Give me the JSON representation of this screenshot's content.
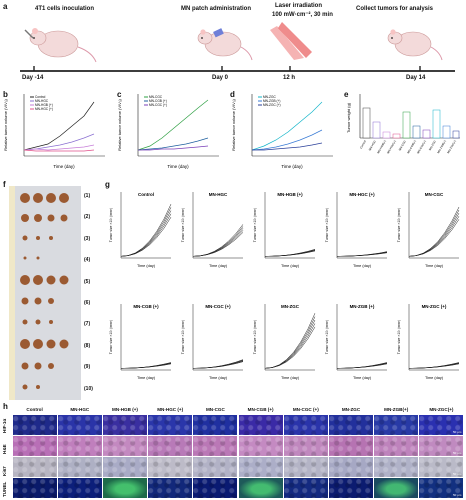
{
  "panels": {
    "a": "a",
    "b": "b",
    "c": "c",
    "d": "d",
    "e": "e",
    "f": "f",
    "g": "g",
    "h": "h"
  },
  "timeline": {
    "steps": [
      {
        "label": "4T1 cells inoculation"
      },
      {
        "label": "MN patch administration"
      },
      {
        "label": "Laser irradiation"
      },
      {
        "label": "Collect tumors for analysis"
      }
    ],
    "laser_detail": "100 mW·cm⁻², 30 min",
    "days": [
      "Day -14",
      "Day 0",
      "12 h",
      "Day 14"
    ]
  },
  "growth": {
    "b": {
      "ylabel": "Relative tumor volume (V/V₀)",
      "xlabel": "Time (day)",
      "legend": [
        "Control",
        "MN-HGC",
        "MN-HGB (+)",
        "MN-HGC (+)"
      ],
      "colors": [
        "#222222",
        "#8a6fd1",
        "#c77dd8",
        "#e0508a"
      ]
    },
    "c": {
      "ylabel": "Relative tumor volume (V/V₀)",
      "xlabel": "Time (day)",
      "legend": [
        "MN-CGC",
        "MN-CGB (+)",
        "MN-CGC (+)"
      ],
      "colors": [
        "#2ea043",
        "#1f5f9e",
        "#7a3fb8"
      ]
    },
    "d": {
      "ylabel": "Relative tumor volume (V/V₀)",
      "xlabel": "Time (day)",
      "legend": [
        "MN-ZGC",
        "MN-ZGB (+)",
        "MN-ZGC (+)"
      ],
      "colors": [
        "#12b5c9",
        "#3a7bd5",
        "#2a3f99"
      ]
    },
    "e": {
      "ylabel": "Tumor weight (g)",
      "categories": [
        "Control",
        "MN-HGC",
        "MN-HGB(+)",
        "MN-HGC(+)",
        "MN-CGC",
        "MN-CGB(+)",
        "MN-CGC(+)",
        "MN-ZGC",
        "MN-ZGB(+)",
        "MN-ZGC(+)"
      ]
    }
  },
  "photo": {
    "rows": [
      "(1)",
      "(2)",
      "(3)",
      "(4)",
      "(5)",
      "(6)",
      "(7)",
      "(8)",
      "(9)",
      "(10)"
    ]
  },
  "g": {
    "xlabel": "Time (day)",
    "ylabel": "Tumor size ×10² (mm³)",
    "titles": [
      "Control",
      "MN-HGC",
      "MN-HGB (+)",
      "MN-HGC (+)",
      "MN-CGC",
      "MN-CGB (+)",
      "MN-CGC (+)",
      "MN-ZGC",
      "MN-ZGB (+)",
      "MN-ZGC (+)"
    ]
  },
  "h": {
    "columns": [
      "Control",
      "MN-HGC",
      "MN-HGB (+)",
      "MN-HGC (+)",
      "MN-CGC",
      "MN-CGB (+)",
      "MN-CGC (+)",
      "MN-ZGC",
      "MN-ZGB(+)",
      "MN-ZGC(+)"
    ],
    "rows": [
      "HIF-1α",
      "H&E",
      "Ki67",
      "TUNEL"
    ],
    "scale": "50 μm"
  }
}
